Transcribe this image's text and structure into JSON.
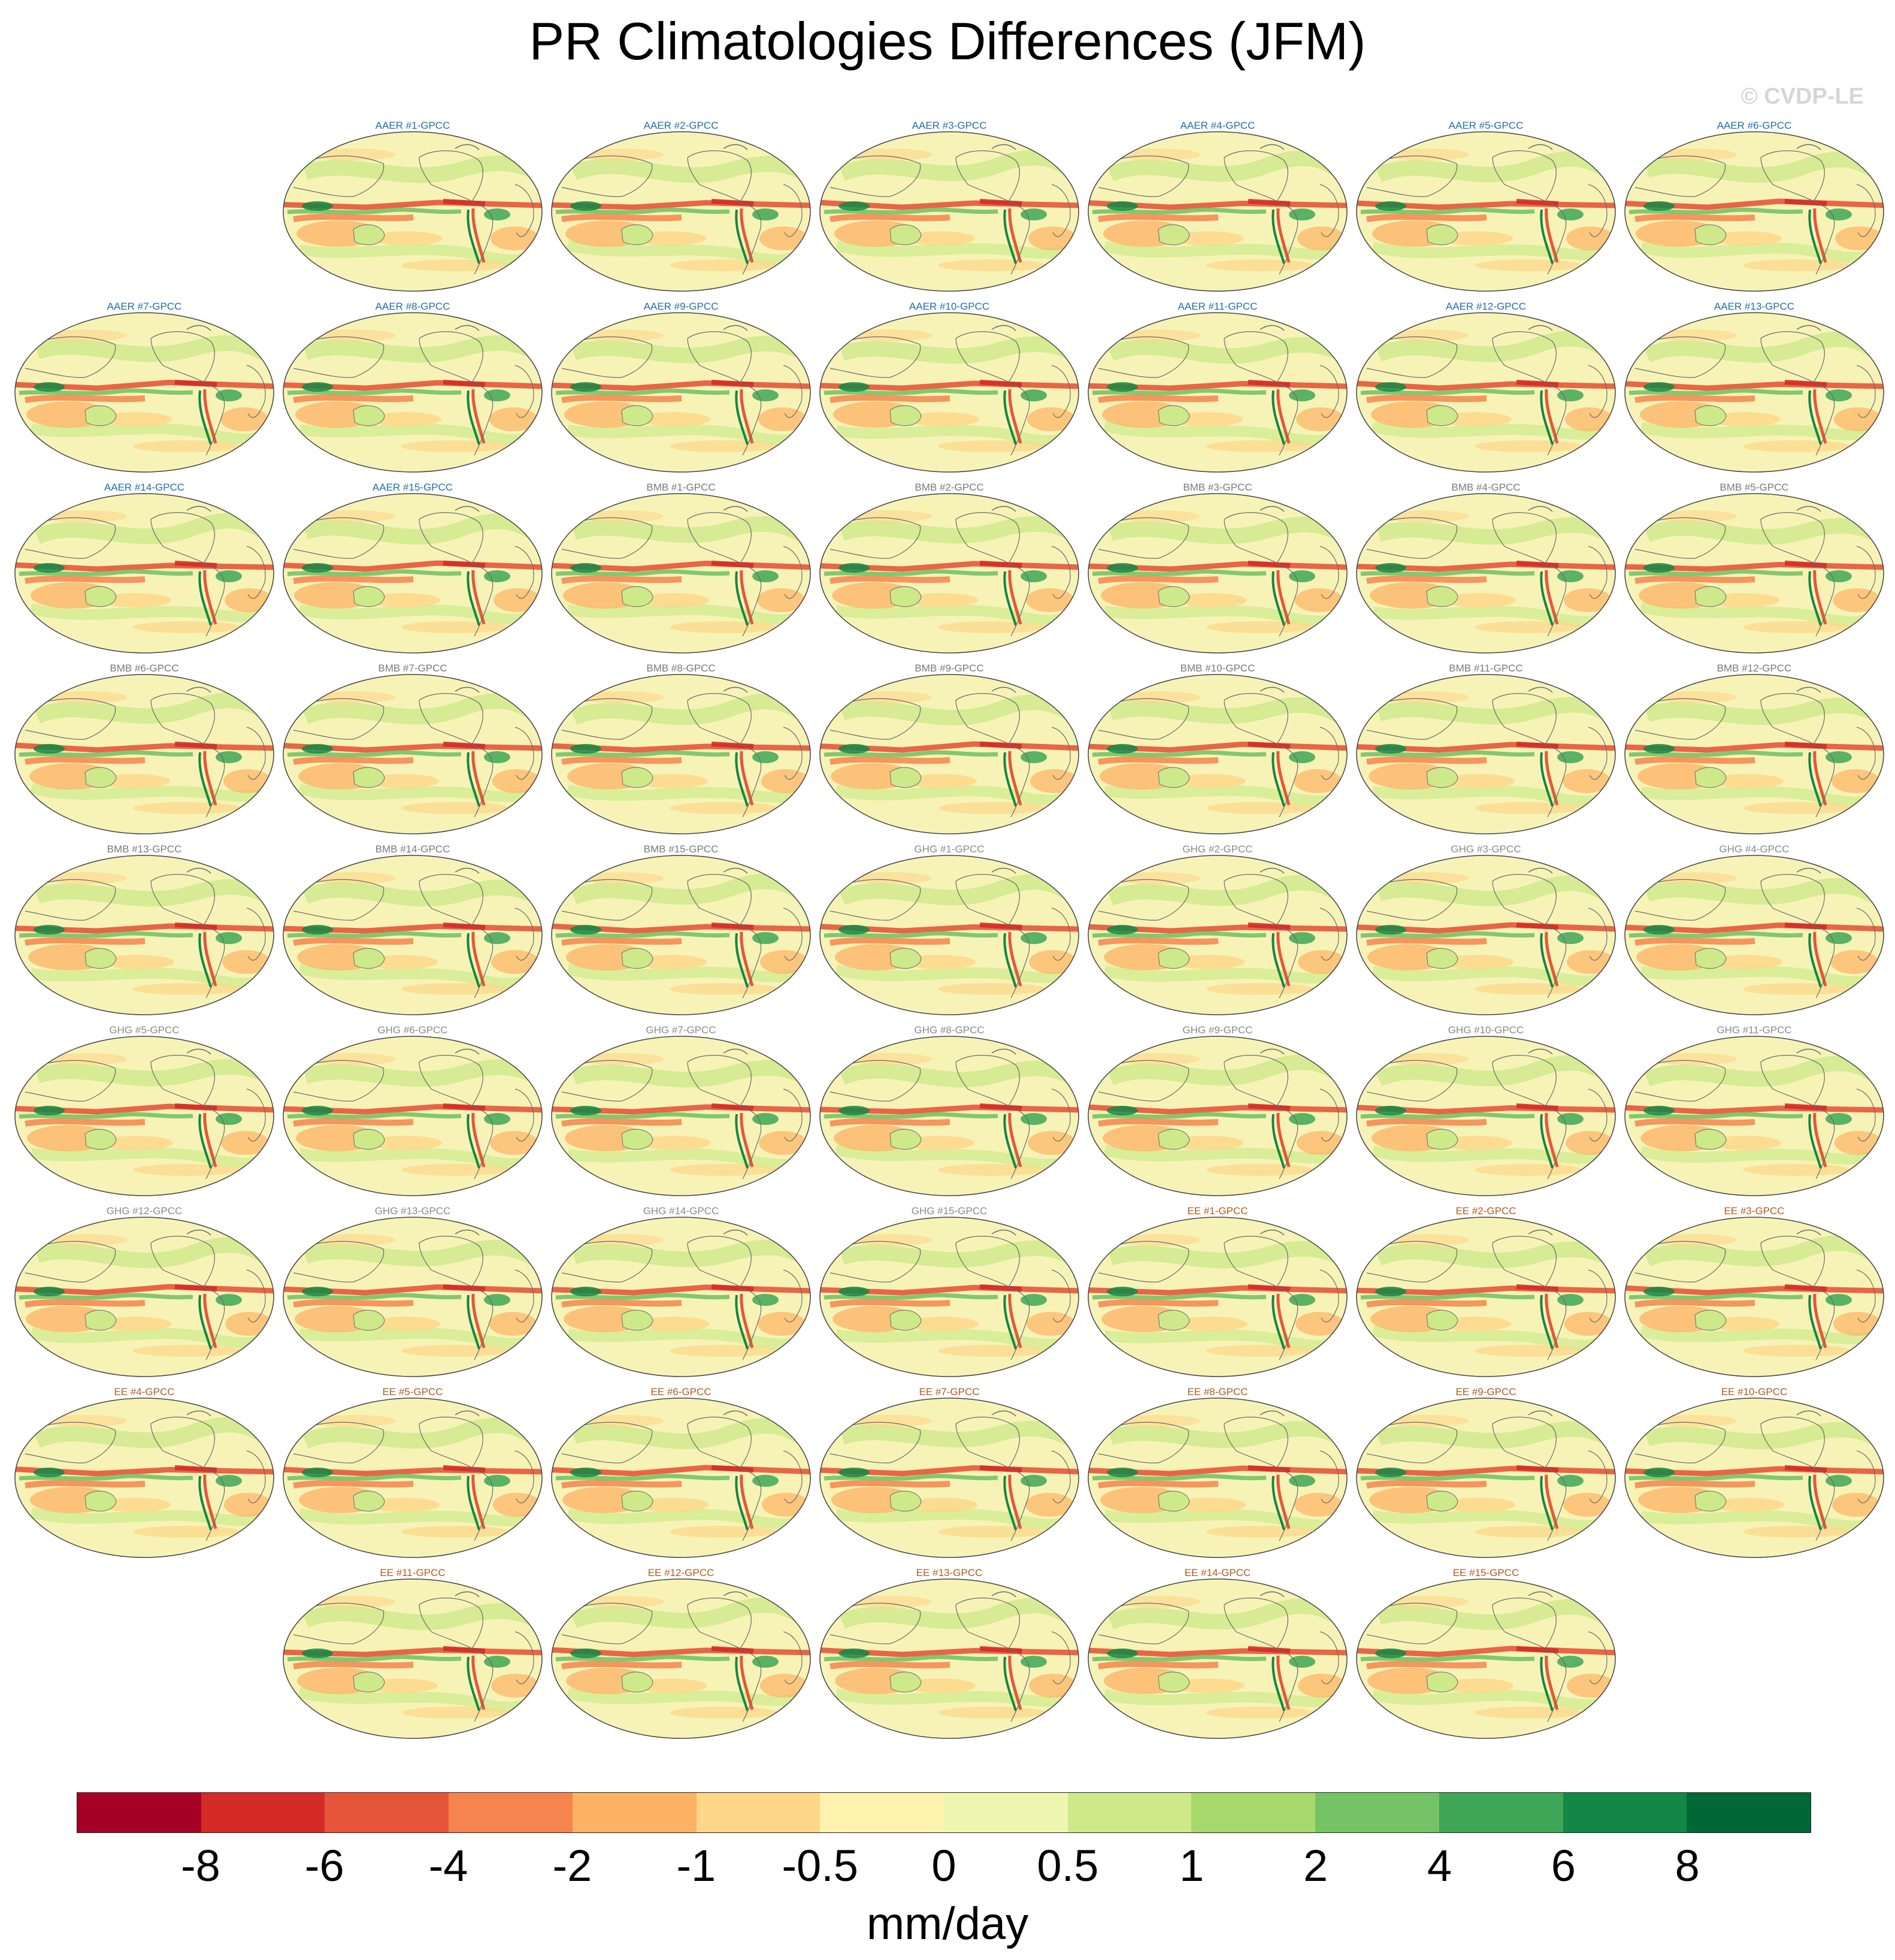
{
  "title": "PR Climatologies Differences (JFM)",
  "copyright": "© CVDP-LE",
  "colors": {
    "AAER": "#1f6fa8",
    "BMB": "#7a7a7a",
    "GHG": "#8a8a8a",
    "EE": "#b35a1f",
    "ocean_bg": "#f7f3b7",
    "land_line": "#6b6b6b"
  },
  "panels": [
    {
      "label": "AAER #1-GPCC",
      "group": "AAER"
    },
    {
      "label": "AAER #2-GPCC",
      "group": "AAER"
    },
    {
      "label": "AAER #3-GPCC",
      "group": "AAER"
    },
    {
      "label": "AAER #4-GPCC",
      "group": "AAER"
    },
    {
      "label": "AAER #5-GPCC",
      "group": "AAER"
    },
    {
      "label": "AAER #6-GPCC",
      "group": "AAER"
    },
    {
      "label": "AAER #7-GPCC",
      "group": "AAER"
    },
    {
      "label": "AAER #8-GPCC",
      "group": "AAER"
    },
    {
      "label": "AAER #9-GPCC",
      "group": "AAER"
    },
    {
      "label": "AAER #10-GPCC",
      "group": "AAER"
    },
    {
      "label": "AAER #11-GPCC",
      "group": "AAER"
    },
    {
      "label": "AAER #12-GPCC",
      "group": "AAER"
    },
    {
      "label": "AAER #13-GPCC",
      "group": "AAER"
    },
    {
      "label": "AAER #14-GPCC",
      "group": "AAER"
    },
    {
      "label": "AAER #15-GPCC",
      "group": "AAER"
    },
    {
      "label": "BMB #1-GPCC",
      "group": "BMB"
    },
    {
      "label": "BMB #2-GPCC",
      "group": "BMB"
    },
    {
      "label": "BMB #3-GPCC",
      "group": "BMB"
    },
    {
      "label": "BMB #4-GPCC",
      "group": "BMB"
    },
    {
      "label": "BMB #5-GPCC",
      "group": "BMB"
    },
    {
      "label": "BMB #6-GPCC",
      "group": "BMB"
    },
    {
      "label": "BMB #7-GPCC",
      "group": "BMB"
    },
    {
      "label": "BMB #8-GPCC",
      "group": "BMB"
    },
    {
      "label": "BMB #9-GPCC",
      "group": "BMB"
    },
    {
      "label": "BMB #10-GPCC",
      "group": "BMB"
    },
    {
      "label": "BMB #11-GPCC",
      "group": "BMB"
    },
    {
      "label": "BMB #12-GPCC",
      "group": "BMB"
    },
    {
      "label": "BMB #13-GPCC",
      "group": "BMB"
    },
    {
      "label": "BMB #14-GPCC",
      "group": "BMB"
    },
    {
      "label": "BMB #15-GPCC",
      "group": "BMB"
    },
    {
      "label": "GHG #1-GPCC",
      "group": "GHG"
    },
    {
      "label": "GHG #2-GPCC",
      "group": "GHG"
    },
    {
      "label": "GHG #3-GPCC",
      "group": "GHG"
    },
    {
      "label": "GHG #4-GPCC",
      "group": "GHG"
    },
    {
      "label": "GHG #5-GPCC",
      "group": "GHG"
    },
    {
      "label": "GHG #6-GPCC",
      "group": "GHG"
    },
    {
      "label": "GHG #7-GPCC",
      "group": "GHG"
    },
    {
      "label": "GHG #8-GPCC",
      "group": "GHG"
    },
    {
      "label": "GHG #9-GPCC",
      "group": "GHG"
    },
    {
      "label": "GHG #10-GPCC",
      "group": "GHG"
    },
    {
      "label": "GHG #11-GPCC",
      "group": "GHG"
    },
    {
      "label": "GHG #12-GPCC",
      "group": "GHG"
    },
    {
      "label": "GHG #13-GPCC",
      "group": "GHG"
    },
    {
      "label": "GHG #14-GPCC",
      "group": "GHG"
    },
    {
      "label": "GHG #15-GPCC",
      "group": "GHG"
    },
    {
      "label": "EE #1-GPCC",
      "group": "EE"
    },
    {
      "label": "EE #2-GPCC",
      "group": "EE"
    },
    {
      "label": "EE #3-GPCC",
      "group": "EE"
    },
    {
      "label": "EE #4-GPCC",
      "group": "EE"
    },
    {
      "label": "EE #5-GPCC",
      "group": "EE"
    },
    {
      "label": "EE #6-GPCC",
      "group": "EE"
    },
    {
      "label": "EE #7-GPCC",
      "group": "EE"
    },
    {
      "label": "EE #8-GPCC",
      "group": "EE"
    },
    {
      "label": "EE #9-GPCC",
      "group": "EE"
    },
    {
      "label": "EE #10-GPCC",
      "group": "EE"
    },
    {
      "label": "EE #11-GPCC",
      "group": "EE"
    },
    {
      "label": "EE #12-GPCC",
      "group": "EE"
    },
    {
      "label": "EE #13-GPCC",
      "group": "EE"
    },
    {
      "label": "EE #14-GPCC",
      "group": "EE"
    },
    {
      "label": "EE #15-GPCC",
      "group": "EE"
    }
  ],
  "colorbar": {
    "colors": [
      "#a50026",
      "#d42b27",
      "#e6553a",
      "#f6844e",
      "#fdb264",
      "#fed688",
      "#fef3ae",
      "#eef7b0",
      "#cde98a",
      "#a7d86b",
      "#74c365",
      "#3ea656",
      "#138745",
      "#006837"
    ],
    "tick_labels": [
      "-8",
      "-6",
      "-4",
      "-2",
      "-1",
      "-0.5",
      "0",
      "0.5",
      "1",
      "2",
      "4",
      "6",
      "8"
    ],
    "unit": "mm/day"
  }
}
